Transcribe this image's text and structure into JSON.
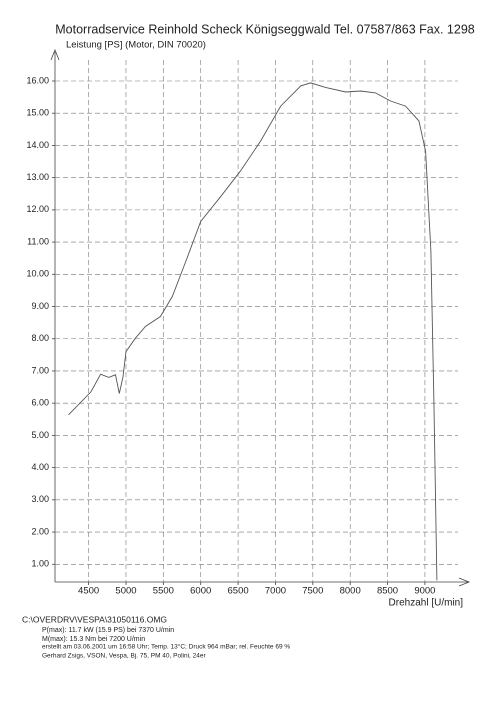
{
  "chart_data": {
    "type": "line",
    "title": "Motorradservice Reinhold Scheck Königseggwald Tel. 07587/863 Fax. 1298",
    "y_label": "Leistung [PS] (Motor, DIN 70020)",
    "x_label": "Drehzahl [U/min]",
    "x": [
      4230,
      4530,
      4660,
      4770,
      4860,
      4910,
      4960,
      5000,
      5120,
      5260,
      5460,
      5620,
      5800,
      6000,
      6270,
      6530,
      6800,
      7070,
      7340,
      7470,
      7670,
      7940,
      8140,
      8340,
      8540,
      8740,
      8920,
      9010,
      9080,
      9120,
      9160
    ],
    "series": [
      {
        "name": "Leistung",
        "color": "#555555",
        "values": [
          5.64,
          6.35,
          6.9,
          6.8,
          6.88,
          6.3,
          6.82,
          7.6,
          8.0,
          8.38,
          8.69,
          9.31,
          10.4,
          11.64,
          12.42,
          13.2,
          14.13,
          15.22,
          15.85,
          15.94,
          15.8,
          15.66,
          15.69,
          15.63,
          15.38,
          15.22,
          14.76,
          13.82,
          10.71,
          6.04,
          0.5
        ]
      }
    ],
    "xlim": [
      4050,
      9550
    ],
    "ylim": [
      0.45,
      16.9
    ],
    "xticks": [
      4500,
      5000,
      5500,
      6000,
      6500,
      7000,
      7500,
      8000,
      8500,
      9000
    ],
    "yticks": [
      {
        "value": 1,
        "label": "1.00"
      },
      {
        "value": 2,
        "label": "2.00"
      },
      {
        "value": 3,
        "label": "3.00"
      },
      {
        "value": 4,
        "label": "4.00"
      },
      {
        "value": 5,
        "label": "5.00"
      },
      {
        "value": 6,
        "label": "6.00"
      },
      {
        "value": 7,
        "label": "7.00"
      },
      {
        "value": 8,
        "label": "8.00"
      },
      {
        "value": 9,
        "label": "9.00"
      },
      {
        "value": 10,
        "label": "10.00"
      },
      {
        "value": 11,
        "label": "11.00"
      },
      {
        "value": 12,
        "label": "12.00"
      },
      {
        "value": 13,
        "label": "13.00"
      },
      {
        "value": 14,
        "label": "14.00"
      },
      {
        "value": 15,
        "label": "15.00"
      },
      {
        "value": 16,
        "label": "16.00"
      }
    ],
    "grid": true,
    "notes": [
      "C:\\OVERDRV\\VESPA\\31050116.OMG",
      "P(max): 11.7 kW (15.9 PS) bei 7370 U/min",
      "M(max): 15.3 Nm bei 7200 U/min",
      "erstellt am 03.06.2001 um 16:58 Uhr; Temp. 13°C; Druck 964 mBar; rel. Feuchte 69 %",
      "Gerhard Zsigs, VSON, Vespa, Bj. 75, PM 40, Polini, 24er"
    ]
  }
}
